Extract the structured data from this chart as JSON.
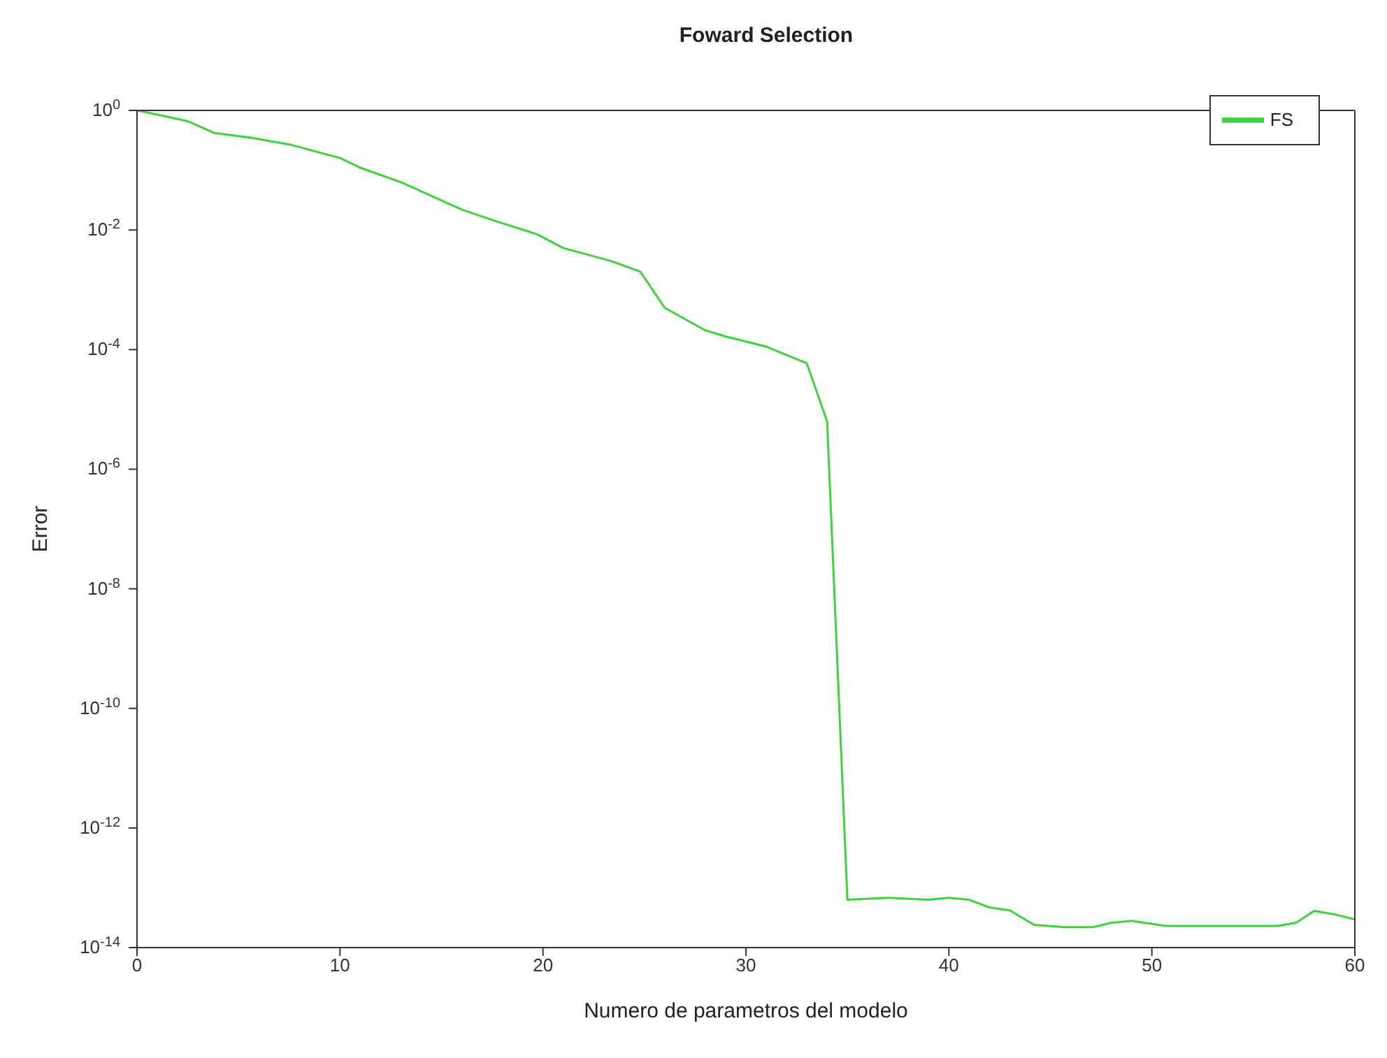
{
  "chart_data": {
    "type": "line",
    "title": "Foward Selection",
    "xlabel": "Numero de parametros del modelo",
    "ylabel": "Error",
    "x": [
      0,
      1,
      2.5,
      3.8,
      5.6,
      7.5,
      10,
      11,
      13,
      16,
      17.7,
      19.7,
      21,
      23.4,
      24.8,
      26,
      28,
      29,
      31,
      33,
      34,
      35,
      37,
      39,
      40,
      41,
      42,
      43,
      44.2,
      45.7,
      47.1,
      48,
      49,
      50.7,
      56.2,
      57.1,
      58,
      59,
      60
    ],
    "series": [
      {
        "name": "FS",
        "color": "#3fd23f",
        "values": [
          1,
          0.85,
          0.66,
          0.42,
          0.35,
          0.27,
          0.16,
          0.11,
          0.063,
          0.022,
          0.014,
          0.0085,
          0.005,
          0.003,
          0.002,
          0.0005,
          0.00021,
          0.000166,
          0.000112,
          5.9e-05,
          6.3e-06,
          6.3e-14,
          6.8e-14,
          6.3e-14,
          6.8e-14,
          6.3e-14,
          4.7e-14,
          4.2e-14,
          2.4e-14,
          2.2e-14,
          2.2e-14,
          2.6e-14,
          2.8e-14,
          2.3e-14,
          2.3e-14,
          2.6e-14,
          4.1e-14,
          3.6e-14,
          2.95e-14
        ]
      }
    ],
    "log": "y",
    "xlim": [
      0,
      60
    ],
    "xticks": [
      0,
      10,
      20,
      30,
      40,
      50,
      60
    ],
    "ylim": [
      1e-14,
      1
    ],
    "yticks": [
      {
        "value": 1e-14,
        "label": "10$^{-14}$"
      },
      {
        "value": 1e-12,
        "label": "10$^{-12}$"
      },
      {
        "value": 1e-10,
        "label": "10$^{-10}$"
      },
      {
        "value": 1e-08,
        "label": "10$^{-8}$"
      },
      {
        "value": 1e-06,
        "label": "10$^{-6}$"
      },
      {
        "value": 0.0001,
        "label": "10$^{-4}$"
      },
      {
        "value": 0.01,
        "label": "10$^{-2}$"
      },
      {
        "value": 1,
        "label": "10$^{0}$"
      }
    ],
    "legend": "top right",
    "marker": "none",
    "line_style": "solid"
  }
}
